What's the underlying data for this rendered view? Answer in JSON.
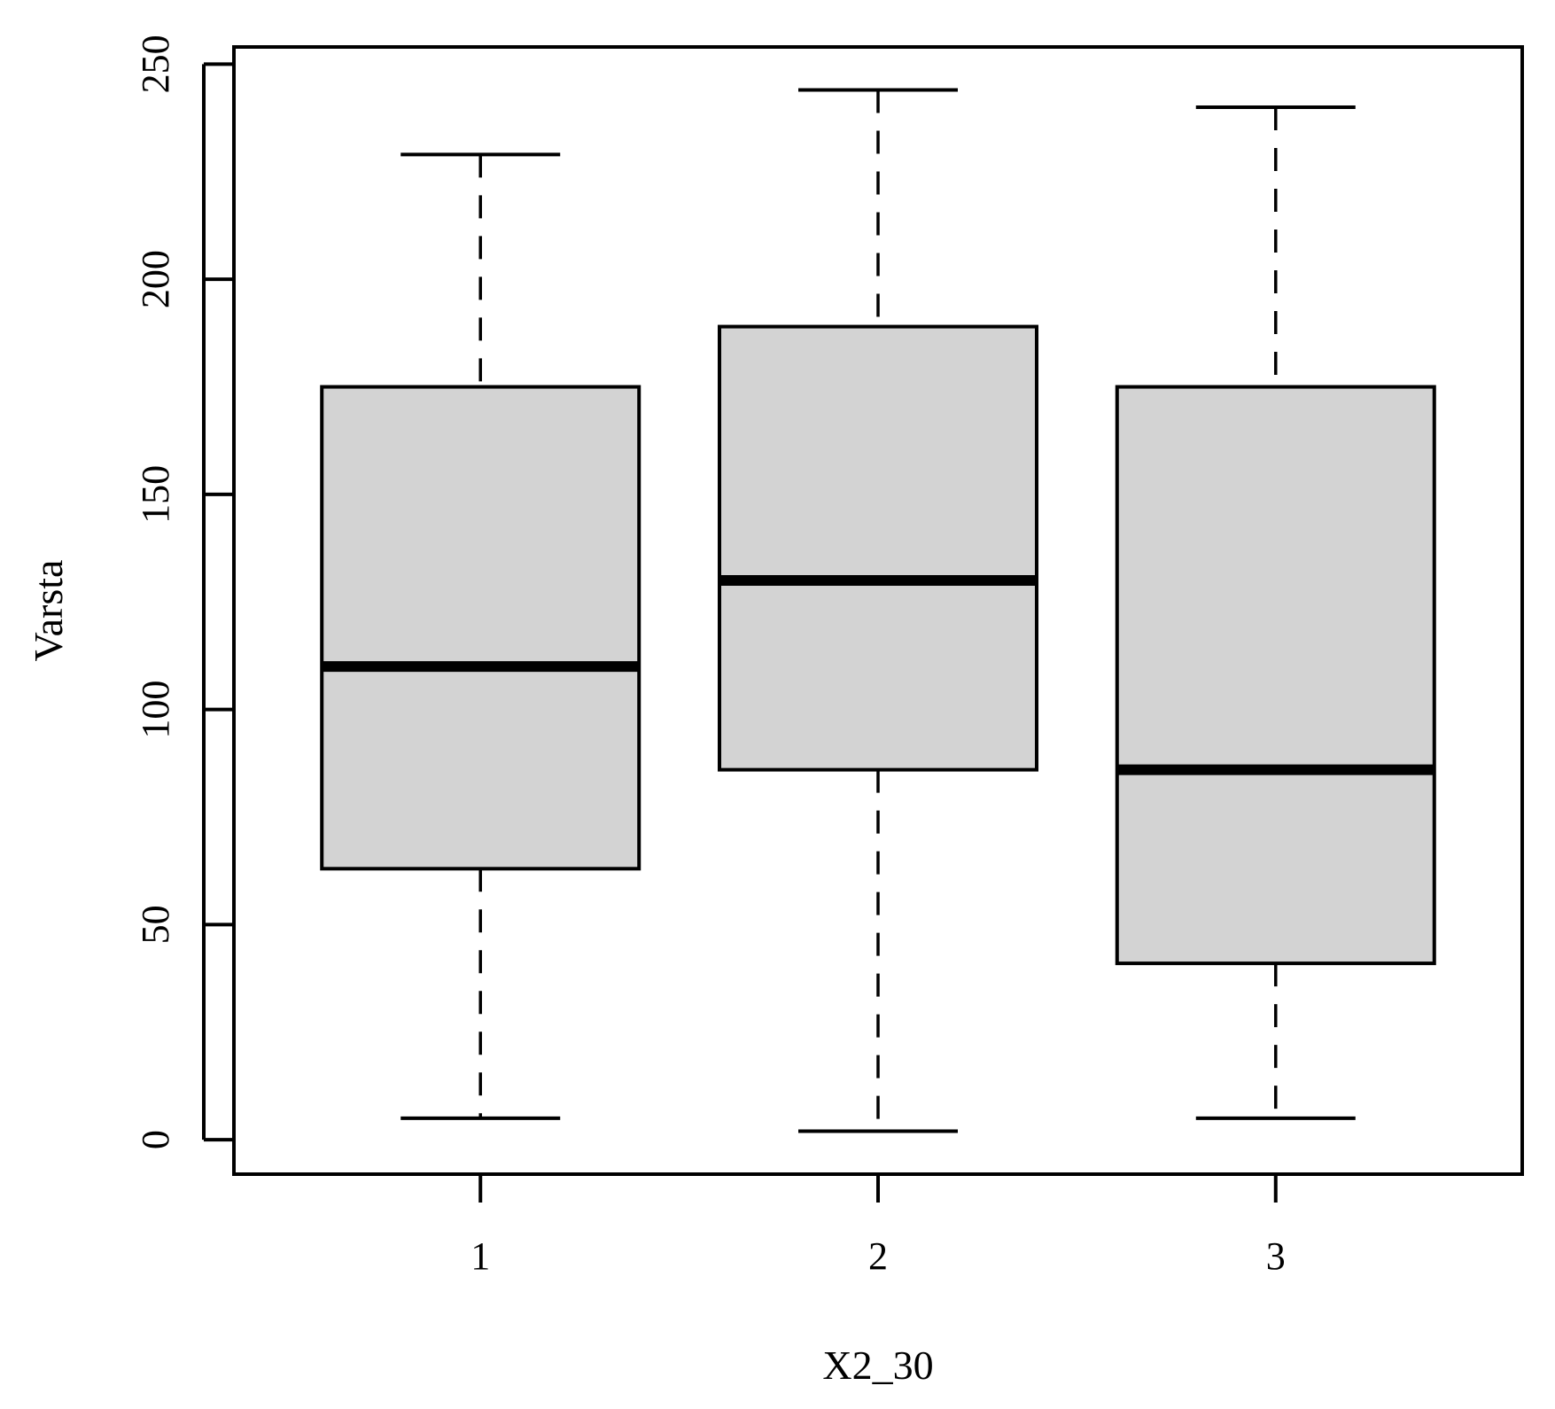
{
  "chart_data": {
    "type": "boxplot",
    "xlabel": "X2_30",
    "ylabel": "Varsta",
    "categories": [
      "1",
      "2",
      "3"
    ],
    "boxes": [
      {
        "category": "1",
        "whisker_low": 5,
        "q1": 63,
        "median": 110,
        "q3": 175,
        "whisker_high": 229
      },
      {
        "category": "2",
        "whisker_low": 2,
        "q1": 86,
        "median": 130,
        "q3": 189,
        "whisker_high": 244
      },
      {
        "category": "3",
        "whisker_low": 5,
        "q1": 41,
        "median": 86,
        "q3": 175,
        "whisker_high": 240
      }
    ],
    "yticks": [
      "0",
      "50",
      "100",
      "150",
      "200",
      "250"
    ],
    "ylim": [
      -8,
      254
    ],
    "box_fill": "#d3d3d3",
    "line_color": "#000000",
    "grid": false,
    "legend": "none"
  }
}
